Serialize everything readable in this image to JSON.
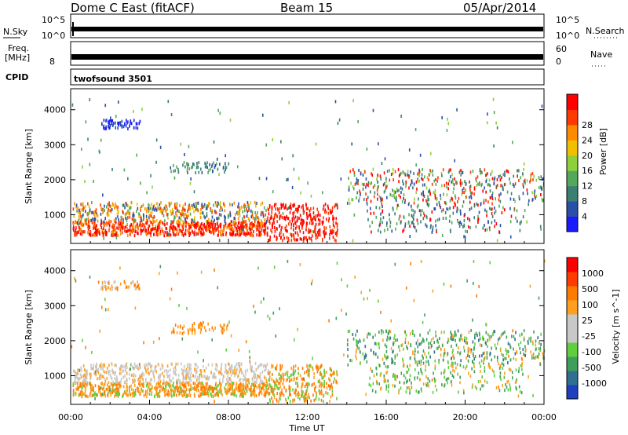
{
  "header": {
    "station": "Dome C East (fitACF)",
    "beam": "Beam 15",
    "date": "05/Apr/2014"
  },
  "strips": {
    "nsky_label": "N.Sky",
    "nsky_top": "10^5",
    "nsky_bottom": "10^0",
    "nsearch_label": "N.Search",
    "nsearch_top": "10^5",
    "nsearch_bottom": "10^0",
    "freq_label": "Freq.",
    "freq_unit": "[MHz]",
    "freq_top": "",
    "freq_bottom": "8",
    "nave_label": "Nave",
    "nave_top": "60",
    "nave_bottom": "0",
    "cpid_label": "CPID",
    "cpid_value": "twofsound 3501"
  },
  "colors": {
    "power": [
      "#1a1aff",
      "#2a4fa8",
      "#3a7f72",
      "#54a85a",
      "#8fcf3a",
      "#f0c000",
      "#ff8a00",
      "#ff3a00",
      "#ff0000"
    ],
    "velocity": [
      "#ff0000",
      "#ff3b00",
      "#ff7a00",
      "#ff9f20",
      "#c8c8c8",
      "#c8c8c8",
      "#5fcf40",
      "#3f9f5a",
      "#2f6f8f",
      "#1f3fbf"
    ]
  },
  "chart_data": [
    {
      "type": "heatmap",
      "panel": "power",
      "ylabel": "Slant Range [km]",
      "ylim": [
        180,
        4600
      ],
      "xlim": [
        "00:00",
        "24:00"
      ],
      "y_ticks": [
        "1000",
        "2000",
        "3000",
        "4000"
      ],
      "x_ticks": [
        "00:00",
        "04:00",
        "08:00",
        "12:00",
        "16:00",
        "20:00",
        "00:00"
      ],
      "colorbar_label": "Power [dB]",
      "colorbar_ticks": [
        "4",
        "8",
        "12",
        "16",
        "20",
        "24",
        "28"
      ],
      "grid": false
    },
    {
      "type": "heatmap",
      "panel": "velocity",
      "ylabel": "Slant Range [km]",
      "xlabel": "Time UT",
      "ylim": [
        180,
        4600
      ],
      "xlim": [
        "00:00",
        "24:00"
      ],
      "y_ticks": [
        "1000",
        "2000",
        "3000",
        "4000"
      ],
      "x_ticks": [
        "00:00",
        "04:00",
        "08:00",
        "12:00",
        "16:00",
        "20:00",
        "00:00"
      ],
      "colorbar_label": "Velocity [m s^-1]",
      "colorbar_ticks": [
        "1000",
        "500",
        "100",
        "25",
        "-25",
        "-100",
        "-500",
        "-1000"
      ],
      "grid": false
    }
  ]
}
